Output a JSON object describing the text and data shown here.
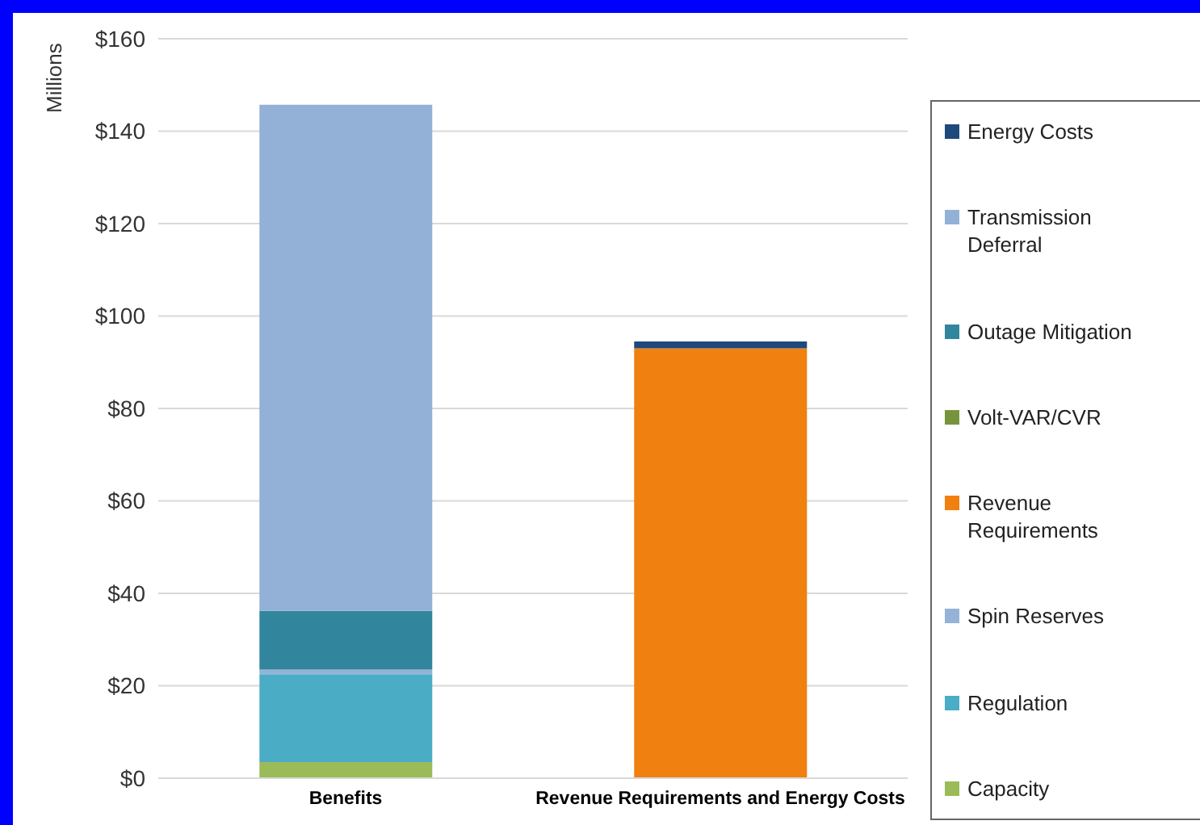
{
  "chart_data": {
    "type": "bar",
    "stacked": true,
    "ylabel": "Millions",
    "categories": [
      "Benefits",
      "Revenue Requirements and Energy Costs"
    ],
    "series": [
      {
        "name": "Capacity",
        "color": "#9bbb59",
        "values": [
          3.5,
          null
        ]
      },
      {
        "name": "Regulation",
        "color": "#4bacc6",
        "values": [
          19,
          null
        ]
      },
      {
        "name": "Spin Reserves",
        "color": "#95b3d7",
        "values": [
          1,
          null
        ]
      },
      {
        "name": "Revenue Requirements",
        "color": "#f0800f",
        "values": [
          null,
          93
        ]
      },
      {
        "name": "Volt-VAR/CVR",
        "color": "#77933c",
        "values": [
          0,
          null
        ]
      },
      {
        "name": "Outage Mitigation",
        "color": "#31859c",
        "values": [
          12.7,
          null
        ]
      },
      {
        "name": "Transmission Deferral",
        "color": "#93b1d6",
        "values": [
          109.5,
          null
        ]
      },
      {
        "name": "Energy Costs",
        "color": "#1f497d",
        "values": [
          null,
          1.5
        ]
      }
    ],
    "ylim": [
      0,
      160
    ],
    "yticks": [
      {
        "value": 0,
        "label": "$0"
      },
      {
        "value": 20,
        "label": "$20"
      },
      {
        "value": 40,
        "label": "$40"
      },
      {
        "value": 60,
        "label": "$60"
      },
      {
        "value": 80,
        "label": "$80"
      },
      {
        "value": 100,
        "label": "$100"
      },
      {
        "value": 120,
        "label": "$120"
      },
      {
        "value": 140,
        "label": "$140"
      },
      {
        "value": 160,
        "label": "$160"
      }
    ],
    "grid": "y",
    "legend": "right"
  }
}
